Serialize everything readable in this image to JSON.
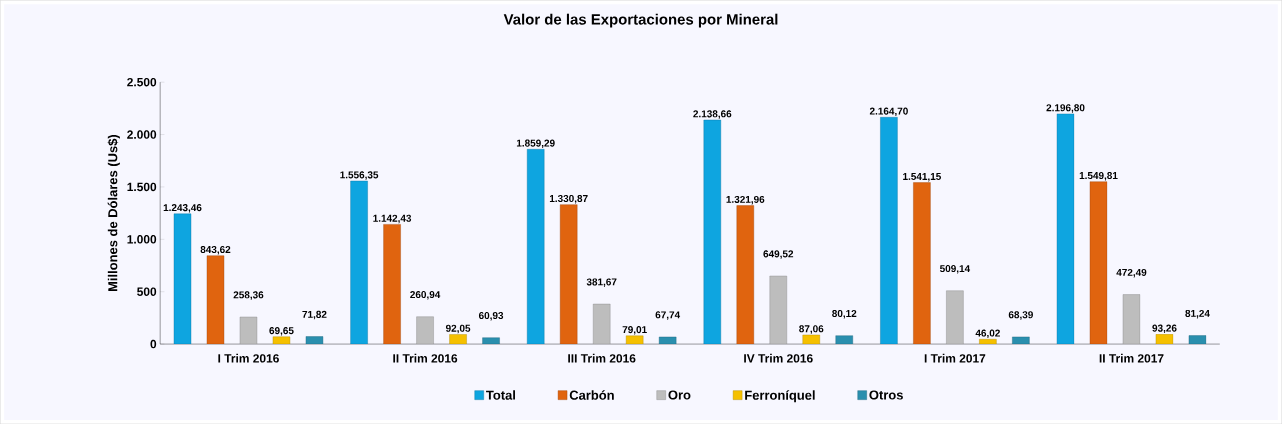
{
  "chart_data": {
    "type": "bar",
    "title": "Valor de las Exportaciones por Mineral",
    "ylabel": "Millones de Dólares (Us$)",
    "categories": [
      "I Trim 2016",
      "II Trim 2016",
      "III Trim 2016",
      "IV Trim 2016",
      "I Trim 2017",
      "II Trim 2017"
    ],
    "series": [
      {
        "name": "Total",
        "color": "#0ea5e0",
        "values": [
          1243.46,
          1556.35,
          1859.29,
          2138.66,
          2164.7,
          2196.8
        ],
        "value_labels": [
          "1.243,46",
          "1.556,35",
          "1.859,29",
          "2.138,66",
          "2.164,70",
          "2.196,80"
        ]
      },
      {
        "name": "Carbón",
        "color": "#e0640f",
        "values": [
          843.62,
          1142.43,
          1330.87,
          1321.96,
          1541.15,
          1549.81
        ],
        "value_labels": [
          "843,62",
          "1.142,43",
          "1.330,87",
          "1.321,96",
          "1.541,15",
          "1.549,81"
        ]
      },
      {
        "name": "Oro",
        "color": "#bdbdbd",
        "values": [
          258.36,
          260.94,
          381.67,
          649.52,
          509.14,
          472.49
        ],
        "value_labels": [
          "258,36",
          "260,94",
          "381,67",
          "649,52",
          "509,14",
          "472,49"
        ]
      },
      {
        "name": "Ferroníquel",
        "color": "#f5c000",
        "values": [
          69.65,
          92.05,
          79.01,
          87.06,
          46.02,
          93.26
        ],
        "value_labels": [
          "69,65",
          "92,05",
          "79,01",
          "87,06",
          "46,02",
          "93,26"
        ]
      },
      {
        "name": "Otros",
        "color": "#2a8fae",
        "values": [
          71.82,
          60.93,
          67.74,
          80.12,
          68.39,
          81.24
        ],
        "value_labels": [
          "71,82",
          "60,93",
          "67,74",
          "80,12",
          "68,39",
          "81,24"
        ]
      }
    ],
    "ylim": [
      0,
      2500
    ],
    "yticks": [
      {
        "value": 0,
        "label": "0"
      },
      {
        "value": 500,
        "label": "500"
      },
      {
        "value": 1000,
        "label": "1.000"
      },
      {
        "value": 1500,
        "label": "1.500"
      },
      {
        "value": 2000,
        "label": "2.000"
      },
      {
        "value": 2500,
        "label": "2.500"
      }
    ],
    "legend": "bottom"
  }
}
